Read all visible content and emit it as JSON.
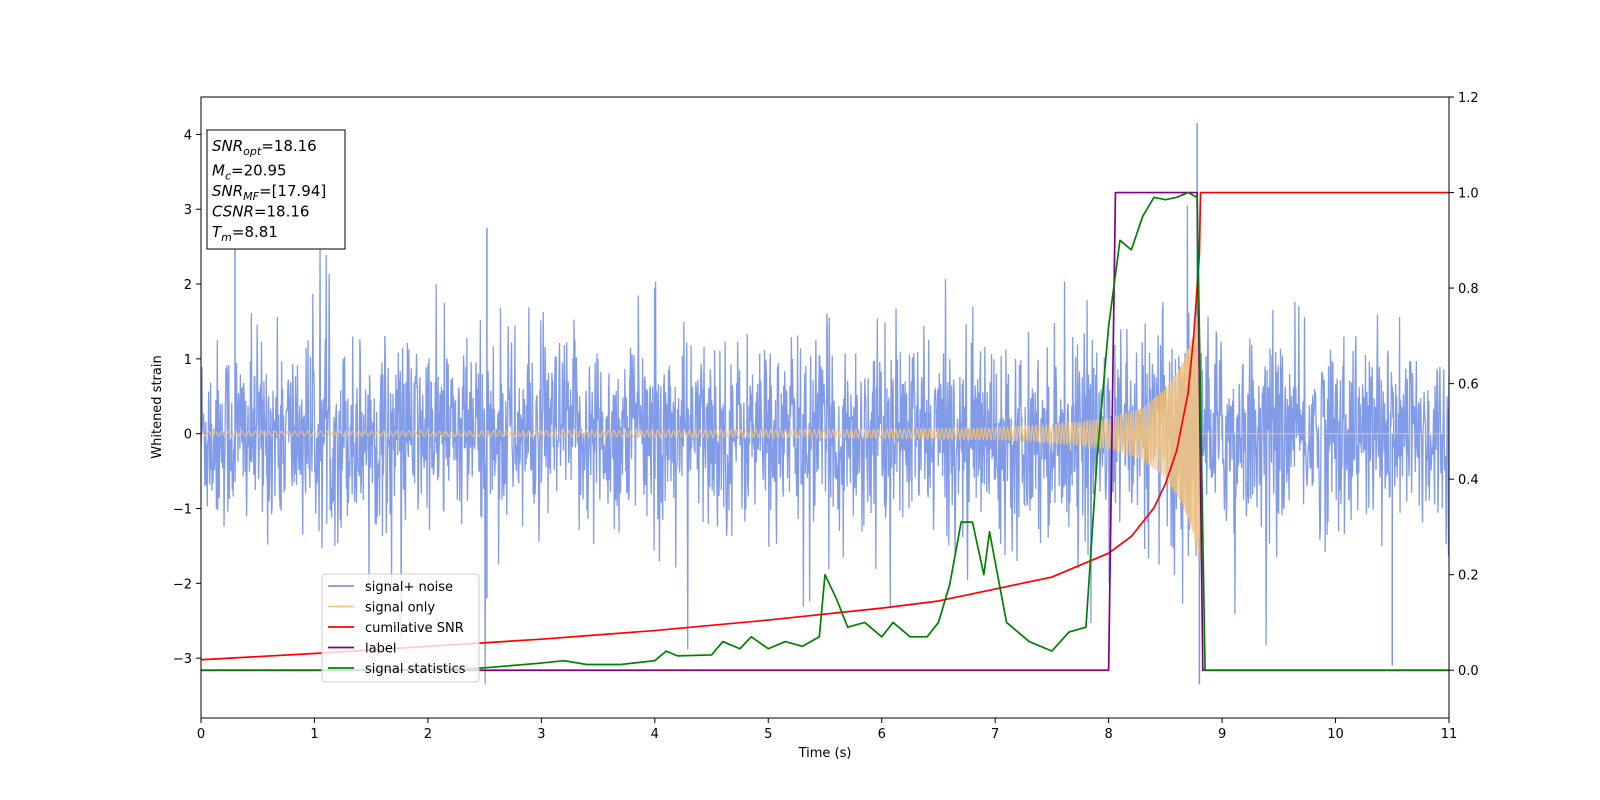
{
  "chart_data": {
    "type": "line",
    "xlabel": "Time (s)",
    "ylabel": "Whitened strain",
    "xlim": [
      0,
      11
    ],
    "ylim": [
      -3.8,
      4.5
    ],
    "ylim_right": [
      -0.1,
      1.2
    ],
    "x_ticks": [
      "0",
      "1",
      "2",
      "3",
      "4",
      "5",
      "6",
      "7",
      "8",
      "9",
      "10",
      "11"
    ],
    "y_ticks": [
      "−3",
      "−2",
      "−1",
      "0",
      "1",
      "2",
      "3",
      "4"
    ],
    "y_ticks_right": [
      "0.0",
      "0.2",
      "0.4",
      "0.6",
      "0.8",
      "1.0",
      "1.2"
    ],
    "grid": false,
    "legend_position": "lower-left",
    "legend": [
      {
        "label": "signal+ noise",
        "color": "#7b96e8"
      },
      {
        "label": "signal only",
        "color": "#f5c67a"
      },
      {
        "label": "cumilative SNR",
        "color": "#ff0000"
      },
      {
        "label": "label",
        "color": "#800080"
      },
      {
        "label": "signal statistics",
        "color": "#008000"
      }
    ],
    "info_box": {
      "lines": [
        {
          "base": "SNR",
          "sub": "opt",
          "value": "=18.16"
        },
        {
          "base": "M",
          "sub": "c",
          "value": "=20.95"
        },
        {
          "base": "SNR",
          "sub": "MF",
          "value": "=[17.94]"
        },
        {
          "base": "CSNR",
          "sub": "",
          "value": "=18.16"
        },
        {
          "base": "T",
          "sub": "m",
          "value": "=8.81"
        }
      ]
    },
    "series": [
      {
        "name": "signal+ noise",
        "axis": "left",
        "description_values": {
          "noise_amplitude_typical": 1.0,
          "noise_peak": 2.5,
          "max_peak": 4.15,
          "min_peak": -3.35,
          "merger_time": 8.81
        }
      },
      {
        "name": "signal only",
        "axis": "left",
        "chirp_amplitude": [
          {
            "x": 0,
            "y": 0.03
          },
          {
            "x": 2,
            "y": 0.035
          },
          {
            "x": 4,
            "y": 0.045
          },
          {
            "x": 6,
            "y": 0.06
          },
          {
            "x": 7,
            "y": 0.08
          },
          {
            "x": 7.5,
            "y": 0.12
          },
          {
            "x": 8,
            "y": 0.2
          },
          {
            "x": 8.3,
            "y": 0.35
          },
          {
            "x": 8.5,
            "y": 0.6
          },
          {
            "x": 8.65,
            "y": 0.95
          },
          {
            "x": 8.75,
            "y": 1.35
          },
          {
            "x": 8.8,
            "y": 1.7
          },
          {
            "x": 8.81,
            "y": 0
          }
        ]
      },
      {
        "name": "cumilative SNR",
        "axis": "right",
        "points": [
          {
            "x": 0,
            "y": 0.022
          },
          {
            "x": 1,
            "y": 0.035
          },
          {
            "x": 2,
            "y": 0.05
          },
          {
            "x": 3,
            "y": 0.065
          },
          {
            "x": 4,
            "y": 0.083
          },
          {
            "x": 5,
            "y": 0.105
          },
          {
            "x": 6,
            "y": 0.13
          },
          {
            "x": 6.5,
            "y": 0.145
          },
          {
            "x": 7,
            "y": 0.17
          },
          {
            "x": 7.5,
            "y": 0.195
          },
          {
            "x": 8,
            "y": 0.245
          },
          {
            "x": 8.2,
            "y": 0.28
          },
          {
            "x": 8.4,
            "y": 0.34
          },
          {
            "x": 8.5,
            "y": 0.39
          },
          {
            "x": 8.6,
            "y": 0.46
          },
          {
            "x": 8.7,
            "y": 0.58
          },
          {
            "x": 8.75,
            "y": 0.7
          },
          {
            "x": 8.8,
            "y": 0.87
          },
          {
            "x": 8.81,
            "y": 1.0
          },
          {
            "x": 11,
            "y": 1.0
          }
        ]
      },
      {
        "name": "label",
        "axis": "right",
        "points": [
          {
            "x": 0,
            "y": 0
          },
          {
            "x": 8.0,
            "y": 0
          },
          {
            "x": 8.06,
            "y": 1.0
          },
          {
            "x": 8.78,
            "y": 1.0
          },
          {
            "x": 8.83,
            "y": 0
          },
          {
            "x": 11,
            "y": 0
          }
        ]
      },
      {
        "name": "signal statistics",
        "axis": "right",
        "points": [
          {
            "x": 0,
            "y": 0
          },
          {
            "x": 1,
            "y": 0
          },
          {
            "x": 2,
            "y": 0.001
          },
          {
            "x": 2.5,
            "y": 0.005
          },
          {
            "x": 3,
            "y": 0.015
          },
          {
            "x": 3.2,
            "y": 0.02
          },
          {
            "x": 3.4,
            "y": 0.012
          },
          {
            "x": 3.7,
            "y": 0.012
          },
          {
            "x": 4,
            "y": 0.02
          },
          {
            "x": 4.1,
            "y": 0.04
          },
          {
            "x": 4.2,
            "y": 0.03
          },
          {
            "x": 4.5,
            "y": 0.032
          },
          {
            "x": 4.6,
            "y": 0.06
          },
          {
            "x": 4.75,
            "y": 0.045
          },
          {
            "x": 4.85,
            "y": 0.07
          },
          {
            "x": 5.0,
            "y": 0.045
          },
          {
            "x": 5.15,
            "y": 0.06
          },
          {
            "x": 5.3,
            "y": 0.05
          },
          {
            "x": 5.45,
            "y": 0.07
          },
          {
            "x": 5.5,
            "y": 0.2
          },
          {
            "x": 5.6,
            "y": 0.15
          },
          {
            "x": 5.7,
            "y": 0.09
          },
          {
            "x": 5.85,
            "y": 0.1
          },
          {
            "x": 6.0,
            "y": 0.07
          },
          {
            "x": 6.1,
            "y": 0.1
          },
          {
            "x": 6.25,
            "y": 0.07
          },
          {
            "x": 6.4,
            "y": 0.07
          },
          {
            "x": 6.5,
            "y": 0.1
          },
          {
            "x": 6.6,
            "y": 0.18
          },
          {
            "x": 6.7,
            "y": 0.31
          },
          {
            "x": 6.8,
            "y": 0.31
          },
          {
            "x": 6.9,
            "y": 0.2
          },
          {
            "x": 6.95,
            "y": 0.29
          },
          {
            "x": 7.1,
            "y": 0.1
          },
          {
            "x": 7.3,
            "y": 0.06
          },
          {
            "x": 7.5,
            "y": 0.04
          },
          {
            "x": 7.65,
            "y": 0.08
          },
          {
            "x": 7.8,
            "y": 0.09
          },
          {
            "x": 7.9,
            "y": 0.45
          },
          {
            "x": 8.0,
            "y": 0.72
          },
          {
            "x": 8.1,
            "y": 0.9
          },
          {
            "x": 8.2,
            "y": 0.88
          },
          {
            "x": 8.3,
            "y": 0.95
          },
          {
            "x": 8.4,
            "y": 0.99
          },
          {
            "x": 8.5,
            "y": 0.985
          },
          {
            "x": 8.6,
            "y": 0.99
          },
          {
            "x": 8.7,
            "y": 1.0
          },
          {
            "x": 8.78,
            "y": 0.99
          },
          {
            "x": 8.85,
            "y": 0
          },
          {
            "x": 11,
            "y": 0
          }
        ]
      }
    ]
  }
}
